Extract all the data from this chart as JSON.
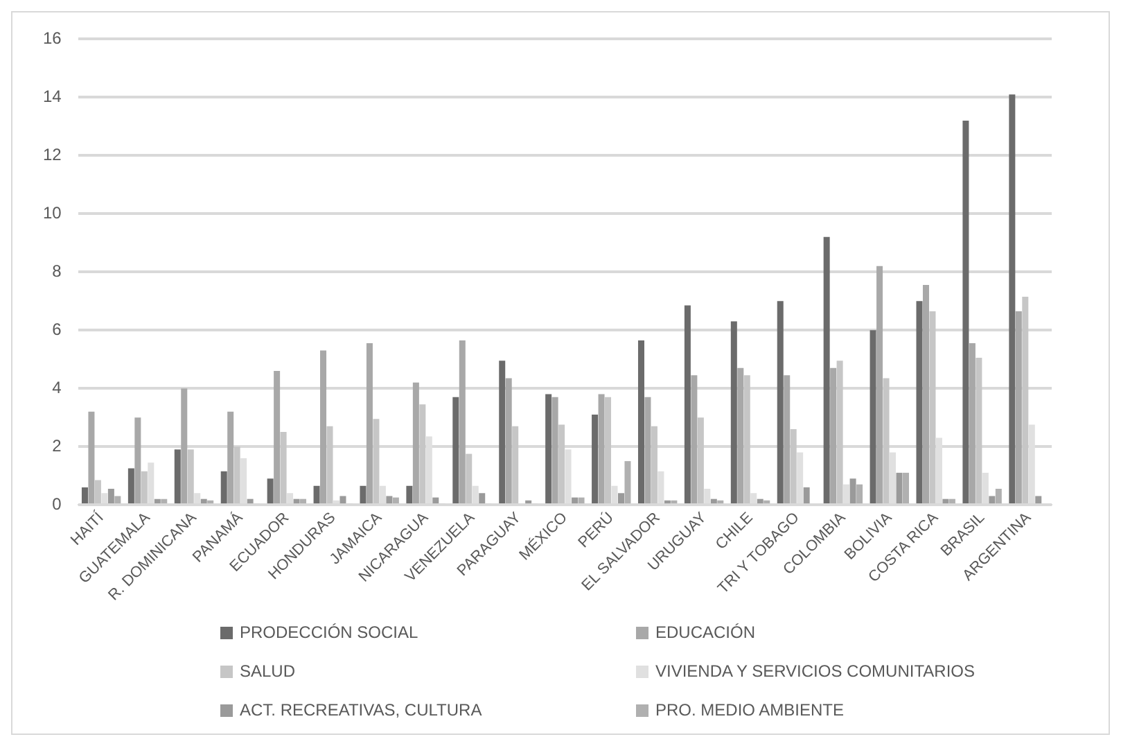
{
  "chart_data": {
    "type": "bar",
    "categories": [
      "HAITÍ",
      "GUATEMALA",
      "R. DOMINICANA",
      "PANAMÁ",
      "ECUADOR",
      "HONDURAS",
      "JAMAICA",
      "NICARAGUA",
      "VENEZUELA",
      "PARAGUAY",
      "MÉXICO",
      "PERÚ",
      "EL SALVADOR",
      "URUGUAY",
      "CHILE",
      "TRI Y TOBAGO",
      "COLOMBIA",
      "BOLIVIA",
      "COSTA RICA",
      "BRASIL",
      "ARGENTINA"
    ],
    "series": [
      {
        "name": "PRODECCIÓN SOCIAL",
        "color": "#6b6b6b",
        "values": [
          0.6,
          1.25,
          1.9,
          1.15,
          0.9,
          0.65,
          0.65,
          0.65,
          3.7,
          4.95,
          3.8,
          3.1,
          5.65,
          6.85,
          6.3,
          7.0,
          9.2,
          6.0,
          7.0,
          13.2,
          14.1
        ]
      },
      {
        "name": "EDUCACIÓN",
        "color": "#a8a8a8",
        "values": [
          3.2,
          3.0,
          4.0,
          3.2,
          4.6,
          5.3,
          5.55,
          4.2,
          5.65,
          4.35,
          3.7,
          3.8,
          3.7,
          4.45,
          4.7,
          4.45,
          4.7,
          8.2,
          7.55,
          5.55,
          6.65
        ]
      },
      {
        "name": "SALUD",
        "color": "#c6c6c6",
        "values": [
          0.85,
          1.15,
          1.9,
          2.0,
          2.5,
          2.7,
          2.95,
          3.45,
          1.75,
          2.7,
          2.75,
          3.7,
          2.7,
          3.0,
          4.45,
          2.6,
          4.95,
          4.35,
          6.65,
          5.05,
          7.15
        ]
      },
      {
        "name": "VIVIENDA Y SERVICIOS COMUNITARIOS",
        "color": "#e0e0e0",
        "values": [
          0.4,
          1.45,
          0.4,
          1.6,
          0.4,
          0.15,
          0.65,
          2.35,
          0.65,
          0.05,
          1.9,
          0.65,
          1.15,
          0.55,
          0.4,
          1.8,
          0.7,
          1.8,
          2.3,
          1.1,
          2.75
        ]
      },
      {
        "name": "ACT. RECREATIVAS, CULTURA",
        "color": "#9a9a9a",
        "values": [
          0.55,
          0.2,
          0.2,
          0.2,
          0.2,
          0.3,
          0.3,
          0.25,
          0.4,
          0.15,
          0.25,
          0.4,
          0.15,
          0.2,
          0.2,
          0.6,
          0.9,
          1.1,
          0.2,
          0.3,
          0.3
        ]
      },
      {
        "name": "PRO. MEDIO AMBIENTE",
        "color": "#b0b0b0",
        "values": [
          0.3,
          0.2,
          0.15,
          0.05,
          0.2,
          0.05,
          0.25,
          0.05,
          0.05,
          0.05,
          0.25,
          1.5,
          0.15,
          0.15,
          0.15,
          0.0,
          0.7,
          1.1,
          0.2,
          0.55,
          0.0
        ]
      }
    ],
    "ylim": [
      0,
      16
    ],
    "yticks": [
      0,
      2,
      4,
      6,
      8,
      10,
      12,
      14,
      16
    ],
    "grid": "y",
    "legend": "bottom"
  }
}
